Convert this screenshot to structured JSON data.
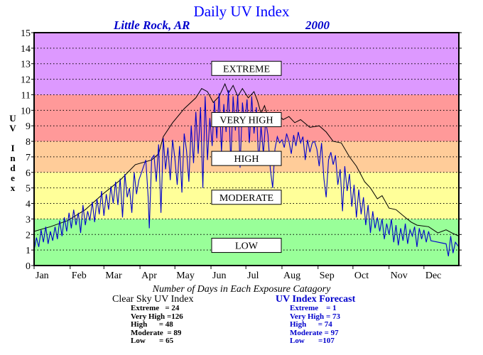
{
  "header": {
    "title": "Daily UV Index",
    "location": "Little Rock, AR",
    "year": "2000"
  },
  "y_axis_label_letters": [
    "U",
    "V",
    "",
    "I",
    "n",
    "d",
    "e",
    "x"
  ],
  "chart_data": {
    "type": "line",
    "title": "Daily UV Index",
    "ylabel": "UV Index",
    "xlabel": "",
    "ylim": [
      0,
      15
    ],
    "yticks": [
      0,
      1,
      2,
      3,
      4,
      5,
      6,
      7,
      8,
      9,
      10,
      11,
      12,
      13,
      14,
      15
    ],
    "xlim": [
      1,
      366
    ],
    "month_ticks": [
      {
        "label": "Jan",
        "day": 1
      },
      {
        "label": "Feb",
        "day": 32
      },
      {
        "label": "Mar",
        "day": 61
      },
      {
        "label": "Apr",
        "day": 92
      },
      {
        "label": "May",
        "day": 122
      },
      {
        "label": "Jun",
        "day": 153
      },
      {
        "label": "Jul",
        "day": 183
      },
      {
        "label": "Aug",
        "day": 214
      },
      {
        "label": "Sep",
        "day": 245
      },
      {
        "label": "Oct",
        "day": 275
      },
      {
        "label": "Nov",
        "day": 306
      },
      {
        "label": "Dec",
        "day": 336
      }
    ],
    "grid": true,
    "bands": [
      {
        "label": "LOW",
        "from": 0,
        "to": 3,
        "color": "#99ff99",
        "label_y": 1.3
      },
      {
        "label": "MODERATE",
        "from": 3,
        "to": 6,
        "color": "#ffff99",
        "label_y": 4.4
      },
      {
        "label": "HIGH",
        "from": 6,
        "to": 8,
        "color": "#ffcc99",
        "label_y": 6.9
      },
      {
        "label": "VERY HIGH",
        "from": 8,
        "to": 11,
        "color": "#ff9999",
        "label_y": 9.4
      },
      {
        "label": "EXTREME",
        "from": 11,
        "to": 15,
        "color": "#dd99ff",
        "label_y": 12.7
      }
    ],
    "series": [
      {
        "name": "Clear Sky UV Index",
        "color": "#000000",
        "points": [
          [
            1,
            2.2
          ],
          [
            15,
            2.5
          ],
          [
            30,
            2.9
          ],
          [
            45,
            3.6
          ],
          [
            60,
            4.6
          ],
          [
            75,
            5.5
          ],
          [
            88,
            6.5
          ],
          [
            102,
            6.8
          ],
          [
            108,
            7.2
          ],
          [
            112,
            8.3
          ],
          [
            120,
            9.2
          ],
          [
            130,
            10.1
          ],
          [
            140,
            10.8
          ],
          [
            145,
            11.4
          ],
          [
            150,
            11.2
          ],
          [
            155,
            10.5
          ],
          [
            160,
            10.9
          ],
          [
            165,
            11.7
          ],
          [
            168,
            11.1
          ],
          [
            172,
            11.6
          ],
          [
            176,
            10.9
          ],
          [
            180,
            11.4
          ],
          [
            185,
            10.8
          ],
          [
            190,
            11.2
          ],
          [
            193,
            10.6
          ],
          [
            196,
            9.8
          ],
          [
            199,
            10.3
          ],
          [
            202,
            9.6
          ],
          [
            206,
            9.1
          ],
          [
            210,
            9.8
          ],
          [
            215,
            9.4
          ],
          [
            220,
            9.6
          ],
          [
            225,
            9.2
          ],
          [
            230,
            9.4
          ],
          [
            238,
            8.9
          ],
          [
            246,
            9.0
          ],
          [
            252,
            8.6
          ],
          [
            258,
            8.0
          ],
          [
            265,
            7.9
          ],
          [
            272,
            7.0
          ],
          [
            278,
            6.4
          ],
          [
            285,
            5.4
          ],
          [
            290,
            5.0
          ],
          [
            296,
            4.3
          ],
          [
            300,
            4.5
          ],
          [
            306,
            3.7
          ],
          [
            312,
            3.6
          ],
          [
            320,
            3.1
          ],
          [
            325,
            2.8
          ],
          [
            330,
            2.6
          ],
          [
            340,
            2.5
          ],
          [
            348,
            2.1
          ],
          [
            355,
            2.3
          ],
          [
            360,
            2.1
          ],
          [
            366,
            1.9
          ]
        ]
      },
      {
        "name": "UV Index Forecast",
        "color": "#0000cc",
        "points": [
          [
            1,
            1.0
          ],
          [
            3,
            1.8
          ],
          [
            5,
            1.2
          ],
          [
            7,
            2.3
          ],
          [
            9,
            1.5
          ],
          [
            11,
            2.5
          ],
          [
            13,
            1.4
          ],
          [
            15,
            2.2
          ],
          [
            17,
            1.6
          ],
          [
            19,
            2.5
          ],
          [
            21,
            1.7
          ],
          [
            23,
            2.9
          ],
          [
            25,
            1.9
          ],
          [
            27,
            3.1
          ],
          [
            29,
            2.2
          ],
          [
            31,
            3.4
          ],
          [
            33,
            2.4
          ],
          [
            35,
            3.6
          ],
          [
            37,
            2.6
          ],
          [
            39,
            3.4
          ],
          [
            41,
            2.1
          ],
          [
            43,
            3.9
          ],
          [
            45,
            2.6
          ],
          [
            47,
            3.5
          ],
          [
            49,
            2.9
          ],
          [
            51,
            4.1
          ],
          [
            53,
            2.8
          ],
          [
            55,
            4.3
          ],
          [
            57,
            3.3
          ],
          [
            59,
            4.8
          ],
          [
            61,
            3.2
          ],
          [
            63,
            4.6
          ],
          [
            65,
            3.6
          ],
          [
            67,
            5.1
          ],
          [
            69,
            4.0
          ],
          [
            71,
            5.4
          ],
          [
            73,
            3.9
          ],
          [
            75,
            5.6
          ],
          [
            77,
            3.1
          ],
          [
            79,
            5.9
          ],
          [
            81,
            4.4
          ],
          [
            83,
            5.0
          ],
          [
            85,
            3.4
          ],
          [
            87,
            6.0
          ],
          [
            89,
            4.6
          ],
          [
            91,
            5.5
          ],
          [
            97,
            6.8
          ],
          [
            99,
            4.4
          ],
          [
            100,
            2.4
          ],
          [
            102,
            6.9
          ],
          [
            104,
            7.1
          ],
          [
            106,
            5.4
          ],
          [
            108,
            7.8
          ],
          [
            110,
            3.4
          ],
          [
            112,
            8.2
          ],
          [
            114,
            6.2
          ],
          [
            116,
            7.6
          ],
          [
            118,
            5.5
          ],
          [
            120,
            8.1
          ],
          [
            122,
            6.9
          ],
          [
            124,
            5.2
          ],
          [
            126,
            7.7
          ],
          [
            128,
            4.7
          ],
          [
            130,
            8.5
          ],
          [
            132,
            7.4
          ],
          [
            134,
            5.4
          ],
          [
            136,
            9.0
          ],
          [
            138,
            6.6
          ],
          [
            140,
            9.9
          ],
          [
            142,
            7.2
          ],
          [
            144,
            10.2
          ],
          [
            146,
            5.0
          ],
          [
            148,
            10.9
          ],
          [
            150,
            6.8
          ],
          [
            152,
            9.5
          ],
          [
            154,
            7.7
          ],
          [
            156,
            10.6
          ],
          [
            158,
            8.2
          ],
          [
            160,
            11.1
          ],
          [
            162,
            7.3
          ],
          [
            164,
            10.4
          ],
          [
            166,
            8.6
          ],
          [
            168,
            11.3
          ],
          [
            170,
            6.5
          ],
          [
            172,
            10.9
          ],
          [
            174,
            8.7
          ],
          [
            176,
            11.0
          ],
          [
            178,
            6.3
          ],
          [
            180,
            10.5
          ],
          [
            182,
            9.1
          ],
          [
            184,
            10.7
          ],
          [
            186,
            7.9
          ],
          [
            188,
            10.9
          ],
          [
            190,
            8.5
          ],
          [
            192,
            10.2
          ],
          [
            194,
            6.6
          ],
          [
            196,
            9.0
          ],
          [
            198,
            7.2
          ],
          [
            200,
            9.3
          ],
          [
            202,
            8.4
          ],
          [
            204,
            6.2
          ],
          [
            206,
            5.0
          ],
          [
            208,
            7.5
          ],
          [
            210,
            8.3
          ],
          [
            212,
            7.9
          ],
          [
            214,
            8.1
          ],
          [
            216,
            7.6
          ],
          [
            218,
            8.5
          ],
          [
            220,
            8.0
          ],
          [
            222,
            7.2
          ],
          [
            224,
            8.4
          ],
          [
            226,
            7.7
          ],
          [
            228,
            8.6
          ],
          [
            230,
            7.9
          ],
          [
            232,
            8.3
          ],
          [
            234,
            6.8
          ],
          [
            236,
            8.1
          ],
          [
            238,
            7.3
          ],
          [
            240,
            7.9
          ],
          [
            242,
            8.0
          ],
          [
            244,
            7.5
          ],
          [
            246,
            6.4
          ],
          [
            248,
            7.9
          ],
          [
            250,
            5.6
          ],
          [
            252,
            4.4
          ],
          [
            254,
            6.8
          ],
          [
            256,
            7.3
          ],
          [
            258,
            6.5
          ],
          [
            260,
            7.1
          ],
          [
            262,
            5.2
          ],
          [
            264,
            6.2
          ],
          [
            266,
            3.5
          ],
          [
            268,
            6.4
          ],
          [
            270,
            4.8
          ],
          [
            272,
            5.9
          ],
          [
            274,
            3.8
          ],
          [
            276,
            5.2
          ],
          [
            278,
            3.1
          ],
          [
            280,
            4.9
          ],
          [
            282,
            3.3
          ],
          [
            284,
            4.4
          ],
          [
            286,
            2.6
          ],
          [
            288,
            3.9
          ],
          [
            290,
            2.1
          ],
          [
            292,
            3.5
          ],
          [
            294,
            2.4
          ],
          [
            296,
            3.1
          ],
          [
            298,
            2.2
          ],
          [
            300,
            3.0
          ],
          [
            302,
            1.7
          ],
          [
            304,
            2.7
          ],
          [
            306,
            2.0
          ],
          [
            308,
            3.0
          ],
          [
            310,
            1.5
          ],
          [
            312,
            2.6
          ],
          [
            314,
            1.3
          ],
          [
            316,
            2.4
          ],
          [
            318,
            1.6
          ],
          [
            320,
            2.7
          ],
          [
            322,
            1.4
          ],
          [
            324,
            2.3
          ],
          [
            326,
            1.9
          ],
          [
            328,
            2.5
          ],
          [
            330,
            1.2
          ],
          [
            332,
            2.4
          ],
          [
            334,
            1.7
          ],
          [
            336,
            2.3
          ],
          [
            338,
            1.5
          ],
          [
            340,
            2.2
          ],
          [
            342,
            1.6
          ],
          [
            355,
            1.4
          ],
          [
            357,
            0.6
          ],
          [
            359,
            1.9
          ],
          [
            361,
            0.8
          ],
          [
            363,
            1.5
          ],
          [
            366,
            1.2
          ]
        ]
      }
    ]
  },
  "summary": {
    "title": "Number of Days in Each Exposure Catagory",
    "clear_sky": {
      "title": "Clear Sky UV Index",
      "rows": [
        {
          "label": "Extreme",
          "sep": "   =",
          "value": "24"
        },
        {
          "label": "Very High",
          "sep": " =",
          "value": "126"
        },
        {
          "label": "High",
          "sep": "      =",
          "value": "48"
        },
        {
          "label": "Moderate",
          "sep": "  =",
          "value": "89"
        },
        {
          "label": "Low",
          "sep": "       =",
          "value": "65"
        }
      ]
    },
    "forecast": {
      "title": "UV Index Forecast",
      "rows": [
        {
          "label": "Extreme",
          "sep": "    =",
          "value": "1"
        },
        {
          "label": "Very High",
          "sep": " =",
          "value": "73"
        },
        {
          "label": "High",
          "sep": "      =",
          "value": "74"
        },
        {
          "label": "Moderate",
          "sep": " =",
          "value": "97"
        },
        {
          "label": "Low",
          "sep": "       =",
          "value": "107"
        }
      ]
    }
  }
}
